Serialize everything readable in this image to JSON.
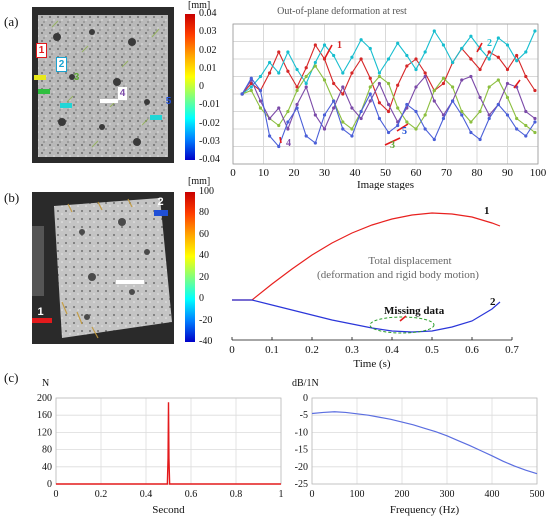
{
  "panels": {
    "a": "(a)",
    "b": "(b)",
    "c": "(c)"
  },
  "photo_a": {
    "labels": [
      "1",
      "2",
      "3",
      "4",
      "5"
    ],
    "label_colors": [
      "#e31a1c",
      "#1aa3d1",
      "#5da832",
      "#7b4aa8",
      "#1f4fd6"
    ]
  },
  "photo_b": {
    "labels": [
      "1",
      "2"
    ],
    "label_colors": [
      "#e31a1c",
      "#1f4fd6"
    ]
  },
  "colorbar_a": {
    "unit": "[mm]",
    "ticks": [
      "0.04",
      "0.03",
      "0.02",
      "0.01",
      "0",
      "-0.01",
      "-0.02",
      "-0.03",
      "-0.04"
    ]
  },
  "colorbar_b": {
    "unit": "[mm]",
    "ticks": [
      "100",
      "80",
      "60",
      "40",
      "20",
      "0",
      "-20",
      "-40"
    ]
  },
  "chart_data": [
    {
      "type": "line",
      "title": "Out-of-plane deformation at rest",
      "xlabel": "Image stages",
      "ylabel": "",
      "xlim": [
        0,
        100
      ],
      "ylim": [
        -0.04,
        0.04
      ],
      "xticks": [
        "0",
        "10",
        "20",
        "30",
        "40",
        "50",
        "60",
        "70",
        "80",
        "90",
        "100"
      ],
      "yticks": [
        "0.04",
        "0.03",
        "0.02",
        "0.01",
        "0",
        "-0.01",
        "-0.02",
        "-0.03",
        "-0.04"
      ],
      "x_start": 3,
      "x_step": 3,
      "series": [
        {
          "name": "1",
          "color": "#d62728",
          "values": [
            0,
            0.006,
            0.002,
            0.012,
            0.024,
            0.013,
            0.004,
            0.015,
            0.028,
            0.02,
            0.006,
            0,
            0.012,
            0.02,
            0.009,
            -0.005,
            -0.01,
            0.005,
            0.016,
            0.02,
            0.012,
            0.002,
            0.006,
            0.018,
            0.026,
            0.02,
            0.014,
            0.024,
            0.021,
            0.014,
            0.022,
            0.01,
            0.002
          ]
        },
        {
          "name": "2",
          "color": "#17becf",
          "values": [
            0,
            0.004,
            0.01,
            0.018,
            0.012,
            0.024,
            0.014,
            0.006,
            0.018,
            0.028,
            0.022,
            0.012,
            0.021,
            0.031,
            0.026,
            0.012,
            0.02,
            0.029,
            0.022,
            0.014,
            0.024,
            0.036,
            0.028,
            0.018,
            0.026,
            0.033,
            0.026,
            0.02,
            0.032,
            0.028,
            0.019,
            0.024,
            0.036
          ]
        },
        {
          "name": "3",
          "color": "#8cbf3f",
          "values": [
            0,
            0.002,
            -0.008,
            -0.014,
            -0.018,
            -0.01,
            0.002,
            0.01,
            0.016,
            0.008,
            -0.004,
            -0.016,
            -0.02,
            -0.01,
            0.004,
            0.01,
            0.006,
            -0.008,
            -0.016,
            -0.02,
            -0.012,
            0.002,
            0.009,
            0.004,
            -0.01,
            -0.016,
            -0.01,
            0.004,
            0.008,
            -0.002,
            -0.014,
            -0.018,
            -0.022
          ]
        },
        {
          "name": "4",
          "color": "#7b4aa8",
          "values": [
            0,
            0.008,
            -0.004,
            -0.014,
            -0.008,
            -0.02,
            -0.006,
            0.004,
            -0.012,
            -0.02,
            -0.008,
            0.004,
            -0.008,
            -0.014,
            -0.004,
            0.006,
            -0.006,
            -0.016,
            -0.008,
            0.004,
            0.01,
            -0.004,
            -0.012,
            -0.004,
            0.008,
            0.01,
            -0.002,
            -0.012,
            -0.006,
            0.006,
            0.004,
            -0.01,
            -0.014
          ]
        },
        {
          "name": "5",
          "color": "#4a5fd8",
          "values": [
            0,
            0.009,
            0.002,
            -0.024,
            -0.03,
            -0.016,
            -0.008,
            -0.024,
            -0.028,
            -0.012,
            -0.004,
            -0.02,
            -0.024,
            -0.01,
            0,
            -0.014,
            -0.022,
            -0.018,
            -0.006,
            -0.01,
            -0.02,
            -0.026,
            -0.014,
            -0.004,
            -0.012,
            -0.022,
            -0.026,
            -0.014,
            -0.006,
            -0.012,
            -0.02,
            -0.024,
            -0.016
          ]
        }
      ],
      "annotations": [
        "1",
        "2",
        "3",
        "4",
        "5"
      ]
    },
    {
      "type": "line",
      "title": "",
      "xlabel": "Time (s)",
      "ylabel": "",
      "xlim": [
        0,
        0.7
      ],
      "ylim": [
        -40,
        100
      ],
      "xticks": [
        "0",
        "0.1",
        "0.2",
        "0.3",
        "0.4",
        "0.5",
        "0.6",
        "0.7"
      ],
      "yticks": [
        "100",
        "80",
        "60",
        "40",
        "20",
        "0",
        "-20",
        "-40"
      ],
      "series": [
        {
          "name": "1",
          "color": "#e8211f",
          "x": [
            0,
            0.05,
            0.1,
            0.15,
            0.2,
            0.25,
            0.3,
            0.35,
            0.4,
            0.45,
            0.5,
            0.55,
            0.6,
            0.65,
            0.67
          ],
          "y": [
            0,
            0,
            16,
            31,
            45,
            57,
            67,
            75,
            81,
            85,
            87,
            86,
            83,
            77,
            74
          ]
        },
        {
          "name": "2",
          "color": "#2b36d9",
          "x": [
            0,
            0.05,
            0.1,
            0.15,
            0.2,
            0.25,
            0.3,
            0.35,
            0.4,
            0.45,
            0.5,
            0.55,
            0.6,
            0.65,
            0.67
          ],
          "y": [
            0,
            0,
            -5,
            -10,
            -15,
            -20,
            -24,
            -28,
            -31,
            -32,
            -31,
            -27,
            -21,
            -9,
            -2
          ]
        }
      ],
      "annotations": [
        "1",
        "2",
        "Total displacement",
        "(deformation and rigid body motion)",
        "Missing data"
      ]
    },
    {
      "type": "line",
      "title": "",
      "ylabel": "N",
      "xlabel": "Second",
      "xlim": [
        0,
        1
      ],
      "ylim": [
        0,
        200
      ],
      "xticks": [
        "0",
        "0.2",
        "0.4",
        "0.6",
        "0.8",
        "1"
      ],
      "yticks": [
        "200",
        "160",
        "120",
        "80",
        "40",
        "0"
      ],
      "series": [
        {
          "name": "",
          "color": "#e31a1c",
          "x": [
            0,
            0.495,
            0.498,
            0.5,
            0.502,
            0.505,
            1
          ],
          "y": [
            0,
            0,
            60,
            190,
            60,
            0,
            0
          ]
        }
      ]
    },
    {
      "type": "line",
      "title": "",
      "ylabel": "dB/1N",
      "xlabel": "Frequency (Hz)",
      "xlim": [
        0,
        500
      ],
      "ylim": [
        -25,
        0
      ],
      "xticks": [
        "0",
        "100",
        "200",
        "300",
        "400",
        "500"
      ],
      "yticks": [
        "0",
        "-5",
        "-10",
        "-15",
        "-20",
        "-25"
      ],
      "series": [
        {
          "name": "",
          "color": "#5b6ee0",
          "x": [
            0,
            25,
            50,
            75,
            100,
            125,
            150,
            175,
            200,
            225,
            250,
            275,
            300,
            325,
            350,
            375,
            400,
            425,
            450,
            475,
            500
          ],
          "y": [
            -4.5,
            -4.2,
            -4.0,
            -4.2,
            -4.6,
            -5.0,
            -5.6,
            -6.2,
            -7.0,
            -7.8,
            -8.8,
            -9.8,
            -11.0,
            -12.4,
            -13.8,
            -15.3,
            -16.8,
            -18.4,
            -19.8,
            -21.0,
            -22.0
          ]
        }
      ]
    }
  ]
}
